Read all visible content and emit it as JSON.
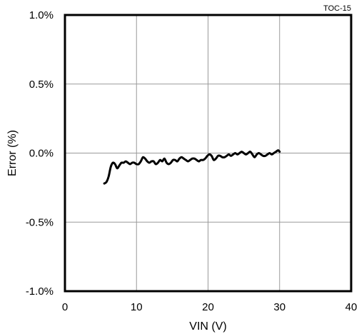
{
  "chart_data": {
    "type": "line",
    "xlabel": "VIN (V)",
    "ylabel": "Error (%)",
    "annotation": "TOC-15",
    "xlim": [
      0,
      40
    ],
    "ylim": [
      -1.0,
      1.0
    ],
    "x_ticks": [
      0,
      10,
      20,
      30,
      40
    ],
    "x_tick_labels": [
      "0",
      "10",
      "20",
      "30",
      "40"
    ],
    "y_ticks": [
      1.0,
      0.5,
      0.0,
      -0.5,
      -1.0
    ],
    "y_tick_labels": [
      "1.0%",
      "0.5%",
      "0.0%",
      "-0.5%",
      "-1.0%"
    ],
    "grid": true,
    "series": [
      {
        "color": "#000000",
        "x": [
          5.5,
          5.8,
          6.1,
          6.4,
          6.7,
          7.0,
          7.3,
          7.6,
          7.9,
          8.2,
          8.5,
          8.8,
          9.1,
          9.4,
          9.7,
          10.0,
          10.3,
          10.6,
          10.9,
          11.2,
          11.5,
          11.8,
          12.1,
          12.4,
          12.7,
          13.0,
          13.3,
          13.6,
          13.9,
          14.2,
          14.5,
          14.8,
          15.1,
          15.4,
          15.7,
          16.0,
          16.3,
          16.6,
          16.9,
          17.2,
          17.5,
          17.8,
          18.1,
          18.4,
          18.7,
          19.0,
          19.3,
          19.6,
          19.9,
          20.2,
          20.5,
          20.8,
          21.1,
          21.4,
          21.7,
          22.0,
          22.3,
          22.6,
          22.9,
          23.2,
          23.5,
          23.8,
          24.1,
          24.4,
          24.7,
          25.0,
          25.3,
          25.6,
          25.9,
          26.2,
          26.5,
          26.8,
          27.1,
          27.4,
          27.7,
          28.0,
          28.3,
          28.6,
          28.9,
          29.2,
          29.5,
          29.8,
          30.0
        ],
        "y": [
          -0.22,
          -0.21,
          -0.17,
          -0.1,
          -0.07,
          -0.08,
          -0.11,
          -0.09,
          -0.07,
          -0.07,
          -0.06,
          -0.07,
          -0.08,
          -0.07,
          -0.07,
          -0.08,
          -0.08,
          -0.06,
          -0.03,
          -0.04,
          -0.06,
          -0.07,
          -0.06,
          -0.06,
          -0.08,
          -0.07,
          -0.05,
          -0.06,
          -0.04,
          -0.07,
          -0.08,
          -0.07,
          -0.05,
          -0.05,
          -0.06,
          -0.04,
          -0.03,
          -0.04,
          -0.05,
          -0.06,
          -0.05,
          -0.04,
          -0.04,
          -0.05,
          -0.06,
          -0.05,
          -0.05,
          -0.04,
          -0.02,
          -0.01,
          -0.02,
          -0.05,
          -0.04,
          -0.02,
          -0.02,
          -0.03,
          -0.03,
          -0.02,
          -0.01,
          -0.02,
          -0.01,
          0.0,
          -0.01,
          0.0,
          0.01,
          0.0,
          -0.01,
          0.0,
          0.01,
          -0.01,
          -0.03,
          -0.01,
          0.0,
          -0.01,
          -0.02,
          -0.02,
          -0.01,
          0.0,
          -0.01,
          0.0,
          0.01,
          0.02,
          0.01
        ]
      }
    ]
  }
}
